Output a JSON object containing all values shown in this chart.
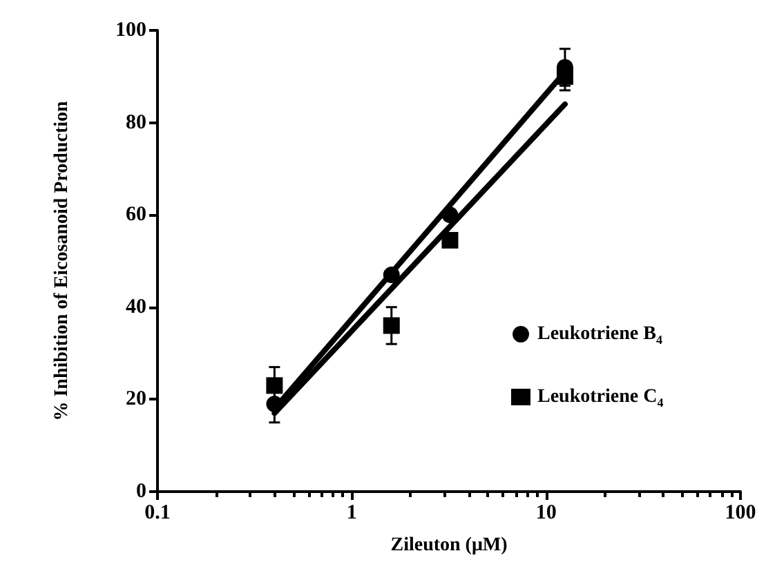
{
  "chart_data": {
    "type": "scatter",
    "xlabel": "Zileuton (μM)",
    "ylabel": "% Inhibition of Eicosanoid Production",
    "log": "x",
    "xlim": [
      0.1,
      100
    ],
    "xticks": [
      0.1,
      1,
      10,
      100
    ],
    "ylim": [
      0,
      100
    ],
    "yticks": [
      0,
      20,
      40,
      60,
      80,
      100
    ],
    "grid": false,
    "legend": "right",
    "series": [
      {
        "name": "Leukotriene B$_{4}$",
        "marker": "circle",
        "color": "#000000",
        "x": [
          0.4,
          1.6,
          3.2,
          12.5
        ],
        "values": [
          19,
          47,
          60,
          92
        ],
        "errors": [
          4,
          null,
          null,
          4
        ]
      },
      {
        "name": "Leukotriene C$_{4}$",
        "marker": "square",
        "color": "#000000",
        "x": [
          0.4,
          1.6,
          3.2,
          12.5
        ],
        "values": [
          23,
          36,
          54.5,
          90
        ],
        "errors": [
          4,
          4,
          null,
          3
        ]
      },
      {
        "type": "line",
        "marker": "none",
        "line_style": "solid",
        "color": "#000000",
        "x": [
          0.4,
          12.5
        ],
        "values": [
          18,
          91
        ]
      },
      {
        "type": "line",
        "marker": "none",
        "line_style": "solid",
        "color": "#000000",
        "x": [
          0.4,
          12.5
        ],
        "values": [
          17,
          84
        ]
      }
    ]
  }
}
